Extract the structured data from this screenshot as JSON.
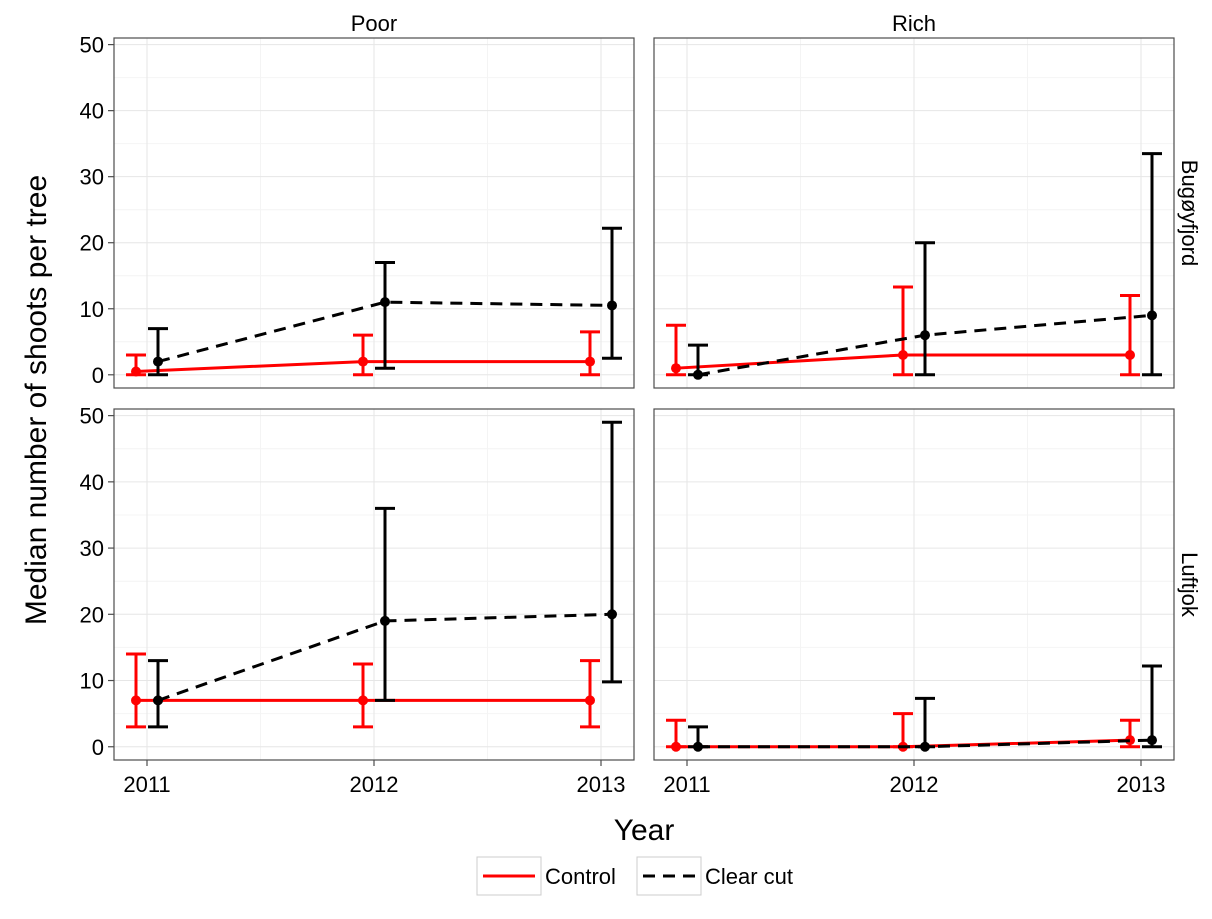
{
  "chart_data": {
    "type": "line",
    "ylabel": "Median number of shoots per tree",
    "xlabel": "Year",
    "x": [
      2011,
      2012,
      2013
    ],
    "x_tick_labels": [
      "2011",
      "2012",
      "2013"
    ],
    "ylim": [
      -2,
      51
    ],
    "y_ticks": [
      0,
      10,
      20,
      30,
      40,
      50
    ],
    "y_tick_labels": [
      "0",
      "10",
      "20",
      "30",
      "40",
      "50"
    ],
    "grid": true,
    "legend_position": "bottom",
    "colors": {
      "control": "#ff0000",
      "clear_cut": "#000000"
    },
    "column_labels": [
      "Poor",
      "Rich"
    ],
    "row_labels": [
      "Bugøyfjord",
      "Luftjok"
    ],
    "legend": [
      {
        "key": "control",
        "label": "Control",
        "line_style": "solid",
        "color": "#ff0000"
      },
      {
        "key": "clear_cut",
        "label": "Clear cut",
        "line_style": "dashed",
        "color": "#000000"
      }
    ],
    "panels": [
      {
        "row": "Bugøyfjord",
        "column": "Poor",
        "series": [
          {
            "name": "Control",
            "median": [
              0.5,
              2,
              2
            ],
            "lower": [
              0,
              0,
              0
            ],
            "upper": [
              3,
              6,
              6.5
            ]
          },
          {
            "name": "Clear cut",
            "median": [
              2,
              11,
              10.5
            ],
            "lower": [
              0,
              1,
              2.5
            ],
            "upper": [
              7,
              17,
              22.2
            ]
          }
        ]
      },
      {
        "row": "Bugøyfjord",
        "column": "Rich",
        "series": [
          {
            "name": "Control",
            "median": [
              1,
              3,
              3
            ],
            "lower": [
              0,
              0,
              0
            ],
            "upper": [
              7.5,
              13.3,
              12
            ]
          },
          {
            "name": "Clear cut",
            "median": [
              0,
              6,
              9
            ],
            "lower": [
              0,
              0,
              0
            ],
            "upper": [
              4.5,
              20,
              33.5
            ]
          }
        ]
      },
      {
        "row": "Luftjok",
        "column": "Poor",
        "series": [
          {
            "name": "Control",
            "median": [
              7,
              7,
              7
            ],
            "lower": [
              3,
              3,
              3
            ],
            "upper": [
              14,
              12.5,
              13
            ]
          },
          {
            "name": "Clear cut",
            "median": [
              7,
              19,
              20
            ],
            "lower": [
              3,
              7,
              9.8
            ],
            "upper": [
              13,
              36,
              49
            ]
          }
        ]
      },
      {
        "row": "Luftjok",
        "column": "Rich",
        "series": [
          {
            "name": "Control",
            "median": [
              0,
              0,
              1
            ],
            "lower": [
              0,
              0,
              0
            ],
            "upper": [
              4,
              5,
              4
            ]
          },
          {
            "name": "Clear cut",
            "median": [
              0,
              0,
              1
            ],
            "lower": [
              0,
              0,
              0
            ],
            "upper": [
              3,
              7.3,
              12.2
            ]
          }
        ]
      }
    ]
  }
}
